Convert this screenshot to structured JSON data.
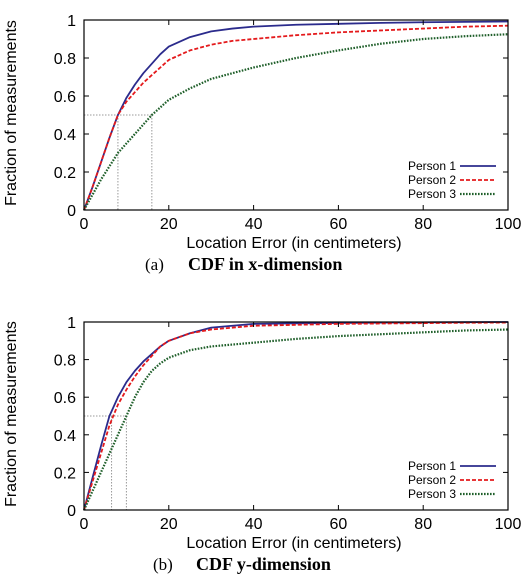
{
  "chart_data": [
    {
      "type": "line",
      "caption_prefix": "(a)",
      "caption": "CDF in x-dimension",
      "xlabel": "Location Error (in centimeters)",
      "ylabel": "Fraction of measurements",
      "xlim": [
        0,
        100
      ],
      "ylim": [
        0,
        1
      ],
      "xticks": [
        "0",
        "20",
        "40",
        "60",
        "80",
        "100"
      ],
      "yticks": [
        "0",
        "0.2",
        "0.4",
        "0.6",
        "0.8",
        "1"
      ],
      "legend_position": "bottom-right",
      "reference_lines": {
        "y": 0.5,
        "x": [
          8,
          16
        ],
        "style": "dotted",
        "color": "#999999"
      },
      "series": [
        {
          "name": "Person 1",
          "color": "#2b2b8c",
          "style": "solid",
          "x": [
            0,
            2,
            4,
            6,
            8,
            10,
            12,
            14,
            16,
            18,
            20,
            25,
            30,
            35,
            40,
            50,
            60,
            70,
            80,
            90,
            100
          ],
          "y": [
            0,
            0.12,
            0.25,
            0.38,
            0.5,
            0.59,
            0.66,
            0.72,
            0.77,
            0.82,
            0.86,
            0.91,
            0.94,
            0.955,
            0.965,
            0.975,
            0.98,
            0.985,
            0.988,
            0.99,
            0.992
          ]
        },
        {
          "name": "Person 2",
          "color": "#e41a1c",
          "style": "dashed",
          "x": [
            0,
            2,
            4,
            6,
            8,
            10,
            12,
            14,
            16,
            18,
            20,
            25,
            30,
            35,
            40,
            50,
            60,
            70,
            80,
            90,
            100
          ],
          "y": [
            0,
            0.12,
            0.25,
            0.38,
            0.5,
            0.57,
            0.62,
            0.67,
            0.71,
            0.75,
            0.79,
            0.84,
            0.87,
            0.89,
            0.9,
            0.92,
            0.935,
            0.945,
            0.955,
            0.965,
            0.97
          ]
        },
        {
          "name": "Person 3",
          "color": "#1f5f2a",
          "style": "dotted",
          "x": [
            0,
            2,
            4,
            6,
            8,
            10,
            12,
            14,
            16,
            18,
            20,
            25,
            30,
            35,
            40,
            50,
            60,
            70,
            80,
            90,
            100
          ],
          "y": [
            0,
            0.08,
            0.16,
            0.23,
            0.3,
            0.35,
            0.4,
            0.45,
            0.5,
            0.54,
            0.58,
            0.64,
            0.69,
            0.72,
            0.75,
            0.8,
            0.84,
            0.875,
            0.9,
            0.915,
            0.925
          ]
        }
      ]
    },
    {
      "type": "line",
      "caption_prefix": "(b)",
      "caption": "CDF y-dimension",
      "xlabel": "Location Error (in centimeters)",
      "ylabel": "Fraction of measurements",
      "xlim": [
        0,
        100
      ],
      "ylim": [
        0,
        1
      ],
      "xticks": [
        "0",
        "20",
        "40",
        "60",
        "80",
        "100"
      ],
      "yticks": [
        "0",
        "0.2",
        "0.4",
        "0.6",
        "0.8",
        "1"
      ],
      "legend_position": "bottom-right",
      "reference_lines": {
        "y": 0.5,
        "x": [
          6.5,
          10
        ],
        "style": "dotted",
        "color": "#999999"
      },
      "series": [
        {
          "name": "Person 1",
          "color": "#2b2b8c",
          "style": "solid",
          "x": [
            0,
            2,
            4,
            6,
            8,
            10,
            12,
            14,
            16,
            18,
            20,
            25,
            30,
            40,
            50,
            60,
            70,
            80,
            90,
            100
          ],
          "y": [
            0,
            0.17,
            0.34,
            0.5,
            0.6,
            0.68,
            0.74,
            0.79,
            0.83,
            0.87,
            0.9,
            0.94,
            0.97,
            0.99,
            0.993,
            0.995,
            0.997,
            0.998,
            0.999,
            1.0
          ]
        },
        {
          "name": "Person 2",
          "color": "#e41a1c",
          "style": "dashed",
          "x": [
            0,
            2,
            4,
            6,
            8,
            10,
            12,
            14,
            16,
            18,
            20,
            25,
            30,
            40,
            50,
            60,
            70,
            80,
            90,
            100
          ],
          "y": [
            0,
            0.15,
            0.3,
            0.45,
            0.56,
            0.64,
            0.71,
            0.77,
            0.82,
            0.87,
            0.9,
            0.94,
            0.96,
            0.98,
            0.985,
            0.99,
            0.992,
            0.994,
            0.996,
            0.997
          ]
        },
        {
          "name": "Person 3",
          "color": "#1f5f2a",
          "style": "dotted",
          "x": [
            0,
            2,
            4,
            6,
            8,
            10,
            12,
            14,
            16,
            18,
            20,
            25,
            30,
            40,
            50,
            60,
            70,
            80,
            90,
            100
          ],
          "y": [
            0,
            0.1,
            0.2,
            0.3,
            0.4,
            0.5,
            0.6,
            0.68,
            0.74,
            0.78,
            0.81,
            0.85,
            0.87,
            0.89,
            0.91,
            0.925,
            0.935,
            0.945,
            0.955,
            0.96
          ]
        }
      ]
    }
  ]
}
